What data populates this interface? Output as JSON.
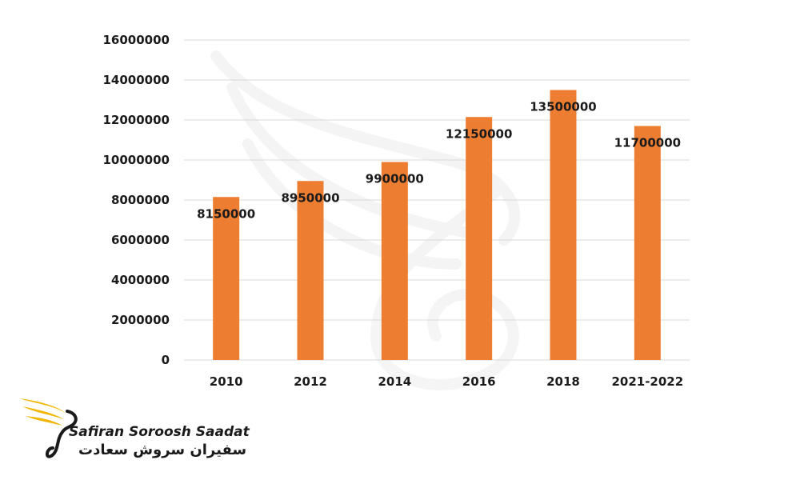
{
  "chart_data": {
    "type": "bar",
    "categories": [
      "2010",
      "2012",
      "2014",
      "2016",
      "2018",
      "2021-2022"
    ],
    "values": [
      8150000,
      8950000,
      9900000,
      12150000,
      13500000,
      11700000
    ],
    "data_labels": [
      "8150000",
      "8950000",
      "9900000",
      "12150000",
      "13500000",
      "11700000"
    ],
    "y_ticks": [
      "0",
      "2000000",
      "4000000",
      "6000000",
      "8000000",
      "10000000",
      "12000000",
      "14000000",
      "16000000"
    ],
    "ylim": [
      0,
      16000000
    ],
    "grid": true,
    "bar_color": "#ED7D31",
    "grid_color": "#D9D9D9"
  },
  "logo": {
    "name_en": "Safiran Soroosh Saadat",
    "name_fa": "سفیران سروش سعادت",
    "icon": "phoenix-logo-icon",
    "accent_color": "#F2B705"
  }
}
